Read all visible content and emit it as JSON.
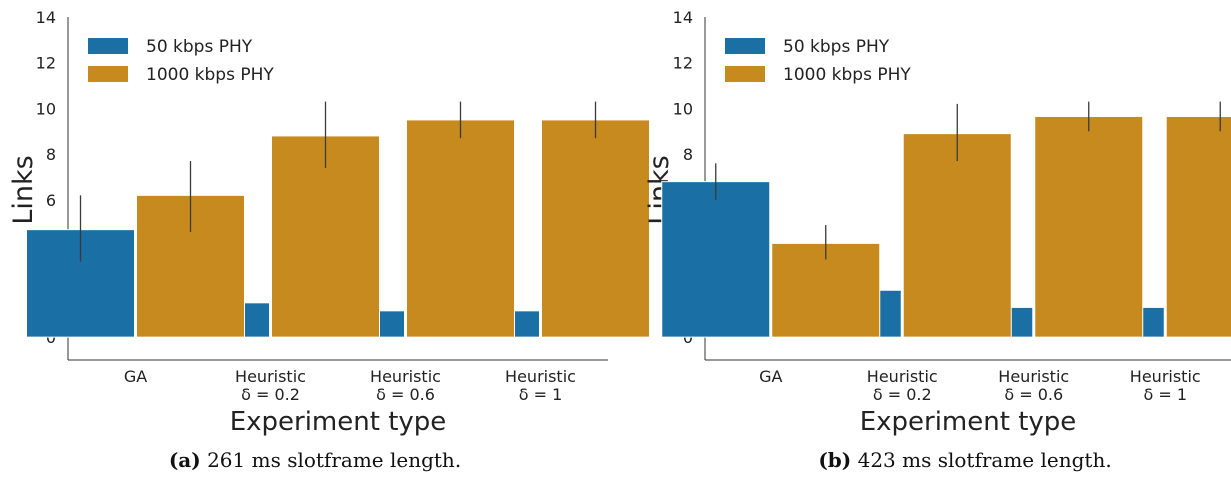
{
  "chart_data": [
    {
      "type": "bar",
      "xlabel": "Experiment type",
      "ylabel": "Links",
      "ylim": [
        -1,
        14
      ],
      "yticks": [
        0,
        2,
        4,
        6,
        8,
        10,
        12,
        14
      ],
      "legend_position": "top-left",
      "grid": false,
      "categories": [
        [
          "GA"
        ],
        [
          "Heuristic",
          "δ = 0.2"
        ],
        [
          "Heuristic",
          "δ = 0.6"
        ],
        [
          "Heuristic",
          "δ = 1"
        ]
      ],
      "series": [
        {
          "name": "50 kbps PHY",
          "color": "#1a6fa5",
          "values": [
            4.7,
            1.5,
            1.15,
            1.15
          ],
          "err_low": [
            3.3,
            0.8,
            0.8,
            0.8
          ],
          "err_high": [
            6.2,
            2.2,
            1.55,
            1.55
          ]
        },
        {
          "name": "1000 kbps PHY",
          "color": "#c78a1e",
          "values": [
            6.2,
            8.8,
            9.5,
            9.5
          ],
          "err_low": [
            4.6,
            7.4,
            8.7,
            8.7
          ],
          "err_high": [
            7.7,
            10.3,
            10.3,
            10.3
          ]
        }
      ],
      "caption": {
        "label": "(a)",
        "text": "261 ms slotframe length."
      }
    },
    {
      "type": "bar",
      "xlabel": "Experiment type",
      "ylabel": "Links",
      "ylim": [
        -1,
        14
      ],
      "yticks": [
        0,
        2,
        4,
        6,
        8,
        10,
        12,
        14
      ],
      "legend_position": "top-left",
      "grid": false,
      "categories": [
        [
          "GA"
        ],
        [
          "Heuristic",
          "δ = 0.2"
        ],
        [
          "Heuristic",
          "δ = 0.6"
        ],
        [
          "Heuristic",
          "δ = 1"
        ]
      ],
      "series": [
        {
          "name": "50 kbps PHY",
          "color": "#1a6fa5",
          "values": [
            6.8,
            2.05,
            1.3,
            1.3
          ],
          "err_low": [
            6.0,
            0.8,
            0.7,
            0.7
          ],
          "err_high": [
            7.6,
            3.3,
            1.95,
            1.95
          ]
        },
        {
          "name": "1000 kbps PHY",
          "color": "#c78a1e",
          "values": [
            4.1,
            8.9,
            9.65,
            9.65
          ],
          "err_low": [
            3.4,
            7.7,
            9.0,
            9.0
          ],
          "err_high": [
            4.9,
            10.2,
            10.3,
            10.3
          ]
        }
      ],
      "caption": {
        "label": "(b)",
        "text": "423 ms slotframe length."
      }
    }
  ]
}
